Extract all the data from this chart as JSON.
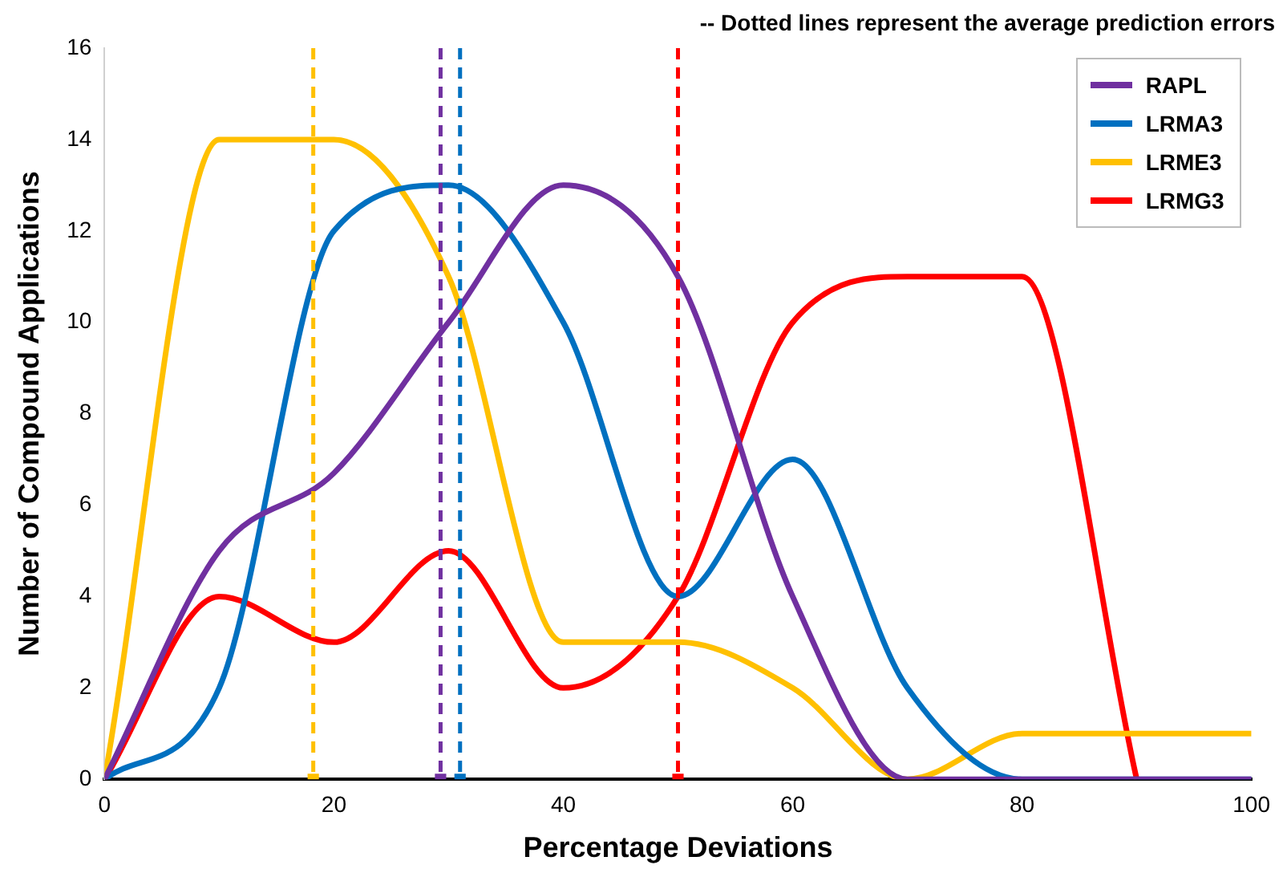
{
  "chart_data": {
    "type": "line",
    "xlabel": "Percentage Deviations",
    "ylabel": "Number of Compound Applications",
    "annotations": [
      "-- Dotted lines represent the average prediction errors"
    ],
    "x": [
      0,
      10,
      20,
      30,
      40,
      50,
      60,
      70,
      80,
      90,
      100
    ],
    "series": [
      {
        "name": "RAPL",
        "color": "#7030a0",
        "values": [
          0,
          5,
          6.7,
          10,
          13,
          11,
          4,
          0,
          0,
          0,
          0
        ]
      },
      {
        "name": "LRMA3",
        "color": "#0070c0",
        "values": [
          0,
          2,
          12,
          13,
          10,
          4,
          7,
          2,
          0,
          0,
          0
        ]
      },
      {
        "name": "LRME3",
        "color": "#ffc000",
        "values": [
          0,
          14,
          14,
          11,
          3,
          3,
          2,
          0,
          1,
          1,
          1
        ]
      },
      {
        "name": "LRMG3",
        "color": "#ff0000",
        "values": [
          0,
          4,
          3,
          5,
          2,
          4,
          10,
          11,
          11,
          0,
          null
        ]
      },
      {
        "type": "scatter",
        "marker": "square",
        "x": [
          18.2,
          29.3,
          31,
          50
        ],
        "values": [
          0,
          0,
          0,
          0
        ],
        "colors": [
          "#ffc000",
          "#7030a0",
          "#0070c0",
          "#ff0000"
        ]
      }
    ],
    "xlim": [
      0,
      100
    ],
    "xticks": [
      0,
      20,
      40,
      60,
      80,
      100
    ],
    "ylim": [
      0,
      16
    ],
    "yticks": [
      0,
      2,
      4,
      6,
      8,
      10,
      12,
      14,
      16
    ],
    "ref_lines": [
      {
        "axis": "x",
        "value": 18.2,
        "color": "#ffc000",
        "line_style": "dashed"
      },
      {
        "axis": "x",
        "value": 29.3,
        "color": "#7030a0",
        "line_style": "dashed"
      },
      {
        "axis": "x",
        "value": 31,
        "color": "#0070c0",
        "line_style": "dashed"
      },
      {
        "axis": "x",
        "value": 50,
        "color": "#ff0000",
        "line_style": "dashed"
      }
    ],
    "grid": false,
    "legend": "top right",
    "marker": "none",
    "line_style": "solid"
  }
}
